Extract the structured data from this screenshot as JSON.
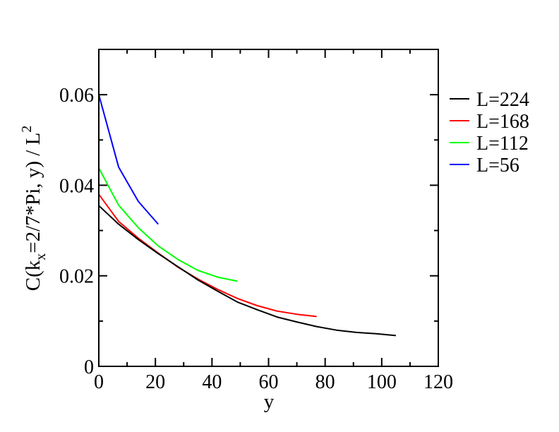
{
  "chart_data": {
    "type": "line",
    "xlabel": "y",
    "ylabel_parts": {
      "a": "C(k",
      "sub": "x",
      "b": "=2/7*Pi, y) / L",
      "sup": "2"
    },
    "xlim": [
      0,
      120
    ],
    "ylim": [
      0,
      0.07
    ],
    "x_ticks": [
      0,
      20,
      40,
      60,
      80,
      100,
      120
    ],
    "x_tick_labels": [
      "0",
      "20",
      "40",
      "60",
      "80",
      "100",
      "120"
    ],
    "y_ticks": [
      0,
      0.02,
      0.04,
      0.06
    ],
    "y_tick_labels": [
      "0",
      "0.02",
      "0.04",
      "0.06"
    ],
    "legend_position": "right, outside plot",
    "grid": false,
    "series": [
      {
        "name": "L=224",
        "color": "#000000",
        "x": [
          0,
          7,
          14,
          21,
          28,
          35,
          42,
          49,
          56,
          63,
          70,
          77,
          84,
          91,
          98,
          105
        ],
        "y": [
          0.0355,
          0.0314,
          0.028,
          0.0249,
          0.022,
          0.0191,
          0.0166,
          0.0142,
          0.0125,
          0.0109,
          0.0098,
          0.0088,
          0.008,
          0.0075,
          0.0072,
          0.0068
        ]
      },
      {
        "name": "L=168",
        "color": "#ff0000",
        "x": [
          0,
          7,
          14,
          21,
          28,
          35,
          42,
          49,
          56,
          63,
          70,
          77
        ],
        "y": [
          0.038,
          0.032,
          0.0283,
          0.025,
          0.0219,
          0.0193,
          0.017,
          0.015,
          0.0134,
          0.0122,
          0.0115,
          0.011
        ]
      },
      {
        "name": "L=112",
        "color": "#00ff00",
        "x": [
          0,
          7,
          14,
          21,
          28,
          35,
          42,
          49
        ],
        "y": [
          0.0438,
          0.0356,
          0.0306,
          0.0266,
          0.0236,
          0.0212,
          0.0197,
          0.0188
        ]
      },
      {
        "name": "L=56",
        "color": "#0000ff",
        "x": [
          0,
          7,
          14,
          21
        ],
        "y": [
          0.06,
          0.044,
          0.0364,
          0.0314
        ]
      }
    ]
  }
}
